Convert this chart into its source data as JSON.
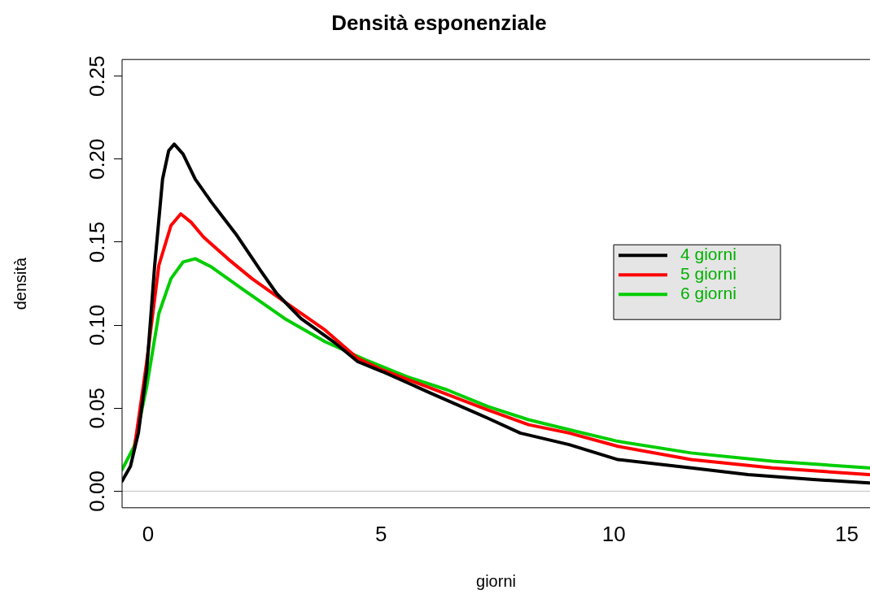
{
  "chart_data": {
    "type": "line",
    "title": "Densità esponenziale",
    "xlabel": "giorni",
    "ylabel": "densità",
    "xlim": [
      -0.56,
      15.5
    ],
    "xticks": [
      0,
      5,
      10,
      15
    ],
    "ylim": [
      -0.01,
      0.26
    ],
    "yticks": [
      {
        "value": 0,
        "label": "0.00"
      },
      {
        "value": 0.05,
        "label": "0.05"
      },
      {
        "value": 0.1,
        "label": "0.10"
      },
      {
        "value": 0.15,
        "label": "0.15"
      },
      {
        "value": 0.2,
        "label": "0.20"
      },
      {
        "value": 0.25,
        "label": "0.25"
      }
    ],
    "grid": false,
    "legend": "right",
    "marker": "none",
    "line_style": "solid",
    "ref_lines": [
      {
        "axis": "y",
        "value": 0,
        "color": "#bebebe"
      }
    ],
    "series": [
      {
        "name": "4 giorni",
        "color": "#000000",
        "x": [
          -0.56,
          -0.38,
          -0.21,
          -0.03,
          0.14,
          0.31,
          0.44,
          0.56,
          0.75,
          1.01,
          1.36,
          1.88,
          2.41,
          2.76,
          3.28,
          3.98,
          4.5,
          5.03,
          6.07,
          7.29,
          7.99,
          9.04,
          10.09,
          11.66,
          12.88,
          14.28,
          15.48
        ],
        "values": [
          0.006,
          0.015,
          0.035,
          0.073,
          0.136,
          0.188,
          0.205,
          0.209,
          0.203,
          0.188,
          0.174,
          0.155,
          0.133,
          0.119,
          0.104,
          0.09,
          0.078,
          0.072,
          0.059,
          0.044,
          0.035,
          0.028,
          0.019,
          0.014,
          0.01,
          0.007,
          0.005
        ]
      },
      {
        "name": "5 giorni",
        "color": "#ff0000",
        "x": [
          -0.3,
          -0.03,
          0.23,
          0.49,
          0.7,
          0.92,
          1.19,
          1.71,
          2.23,
          2.93,
          3.8,
          4.5,
          5.03,
          6.07,
          7.29,
          8.17,
          9.04,
          10.09,
          11.66,
          13.4,
          15.48
        ],
        "values": [
          0.025,
          0.078,
          0.136,
          0.16,
          0.167,
          0.162,
          0.153,
          0.14,
          0.128,
          0.114,
          0.097,
          0.08,
          0.073,
          0.062,
          0.049,
          0.04,
          0.035,
          0.027,
          0.019,
          0.014,
          0.01
        ]
      },
      {
        "name": "6 giorni",
        "color": "#00cd00",
        "x": [
          -0.56,
          -0.3,
          -0.03,
          0.23,
          0.49,
          0.75,
          1.01,
          1.36,
          2.06,
          2.93,
          3.8,
          4.68,
          5.55,
          6.42,
          7.29,
          8.17,
          9.04,
          10.09,
          11.66,
          13.4,
          15.48
        ],
        "values": [
          0.013,
          0.027,
          0.063,
          0.107,
          0.128,
          0.138,
          0.14,
          0.135,
          0.121,
          0.104,
          0.09,
          0.079,
          0.069,
          0.061,
          0.051,
          0.043,
          0.037,
          0.03,
          0.023,
          0.018,
          0.014
        ]
      }
    ]
  }
}
